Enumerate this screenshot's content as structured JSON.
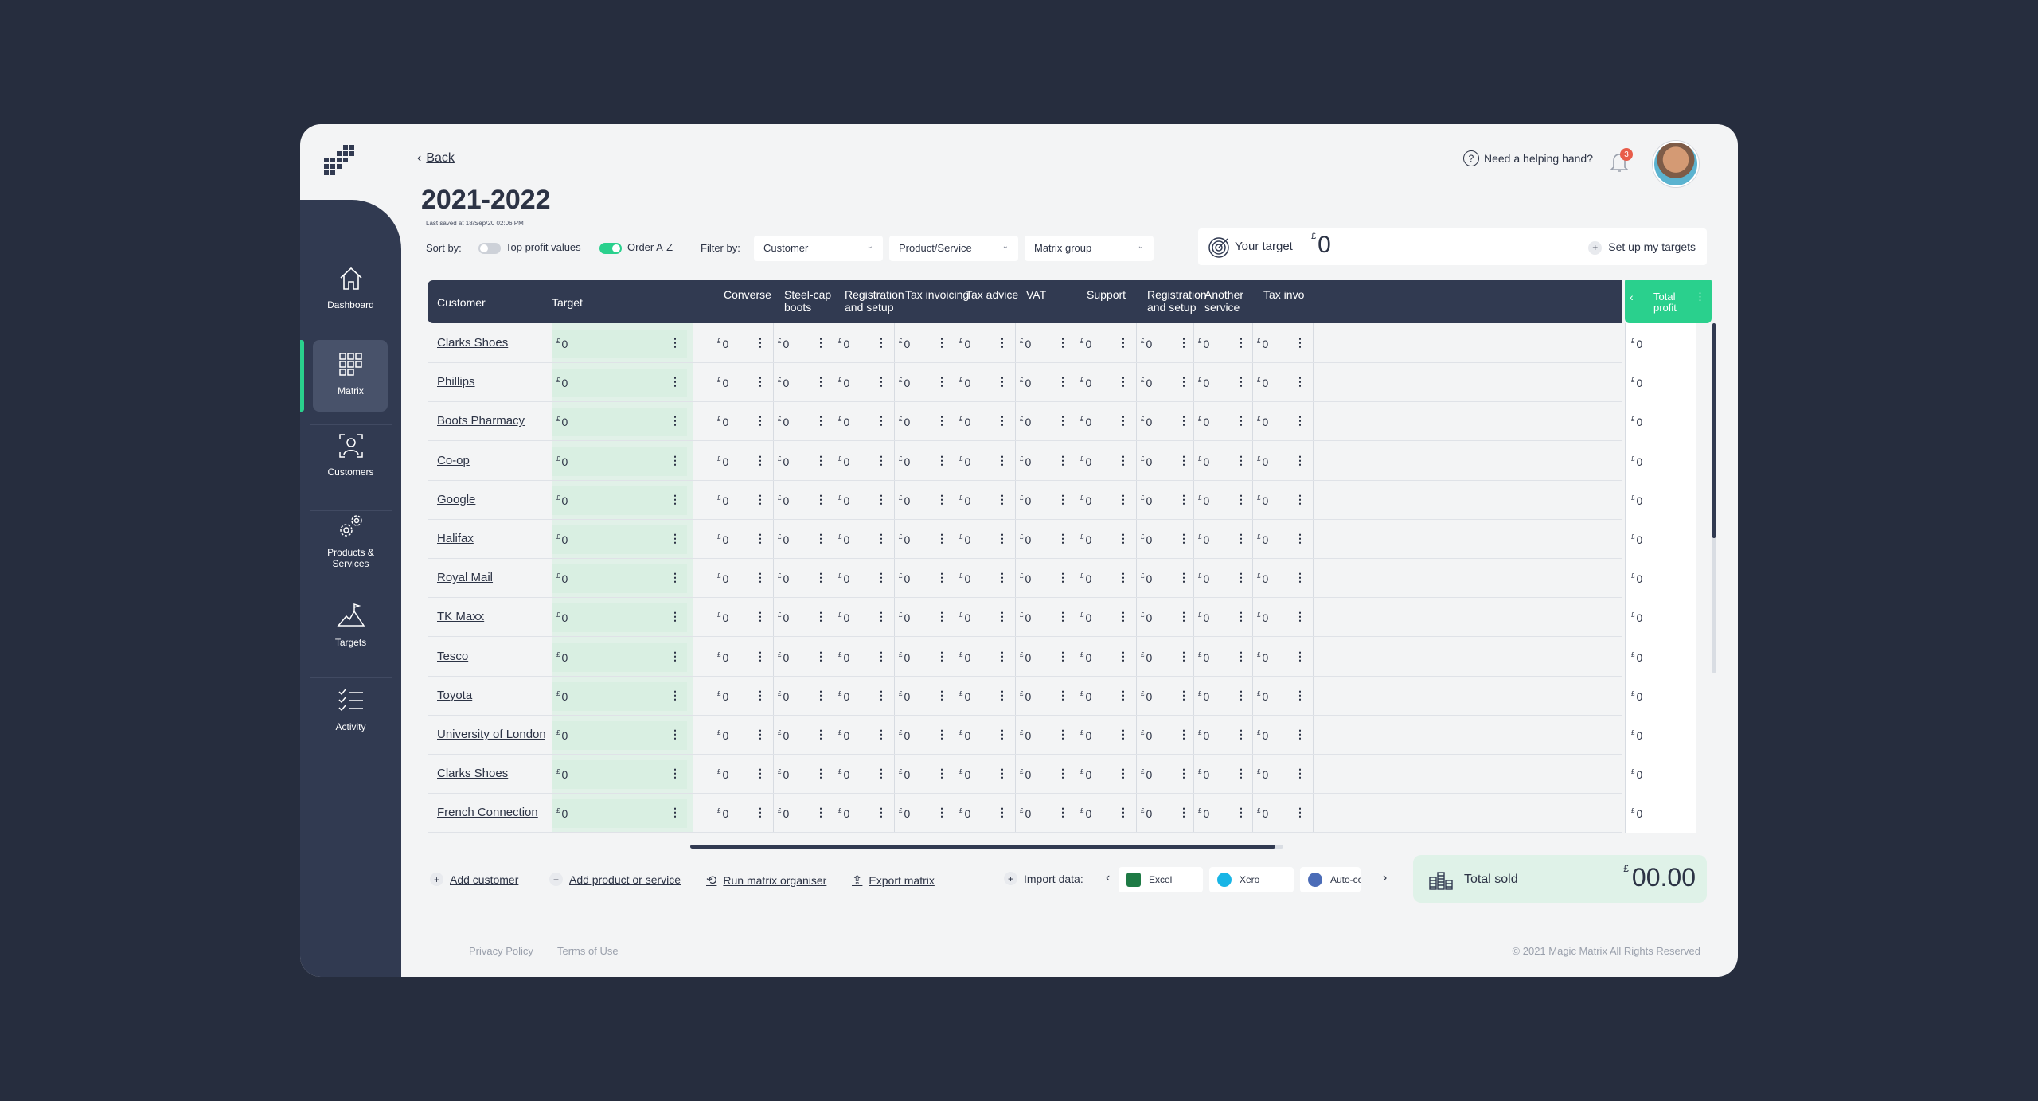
{
  "nav": {
    "items": [
      {
        "label": "Dashboard",
        "icon": "home-icon"
      },
      {
        "label": "Matrix",
        "icon": "grid-icon"
      },
      {
        "label": "Customers",
        "icon": "customer-icon"
      },
      {
        "label": "Products &\nServices",
        "icon": "gears-icon"
      },
      {
        "label": "Targets",
        "icon": "mountain-flag-icon"
      },
      {
        "label": "Activity",
        "icon": "checklist-icon"
      }
    ],
    "active": "Matrix",
    "accent_color": "#2ad08d"
  },
  "header": {
    "back_label": "Back",
    "title": "2021-2022",
    "last_saved": "Last saved at 18/Sep/20 02:06 PM",
    "help_label": "Need a helping hand?",
    "notification_count": "3"
  },
  "toolbar": {
    "sort_label": "Sort by:",
    "sort_top_profit": "Top profit values",
    "sort_top_profit_on": false,
    "sort_order_az": "Order A-Z",
    "sort_order_az_on": true,
    "filter_label": "Filter by:",
    "filters": [
      "Customer",
      "Product/Service",
      "Matrix group"
    ],
    "target_label": "Your target",
    "target_currency": "£",
    "target_value": "0",
    "setup_targets_label": "Set up my targets"
  },
  "table": {
    "header_customer": "Customer",
    "header_target": "Target",
    "service_columns": [
      "Converse",
      "Steel-cap\nboots",
      "Registration\nand setup",
      "Tax invoicing",
      "Tax advice",
      "VAT",
      "Support",
      "Registration\nand setup",
      "Another\nservice",
      "Tax invo"
    ],
    "total_header": "Total\nprofit",
    "currency": "£",
    "customers": [
      "Clarks Shoes",
      "Phillips",
      "Boots Pharmacy",
      "Co-op",
      "Google",
      "Halifax",
      "Royal Mail",
      "TK Maxx",
      "Tesco",
      "Toyota",
      "University of London",
      "Clarks Shoes",
      "French Connection"
    ],
    "cell_value": "0",
    "total_value": "0"
  },
  "actions": {
    "add_customer": "Add customer",
    "add_product": "Add product or service",
    "run_organiser": "Run matrix organiser",
    "export_matrix": "Export matrix",
    "import_label": "Import data:",
    "import_sources": [
      "Excel",
      "Xero",
      "Auto-co"
    ]
  },
  "total_sold": {
    "label": "Total sold",
    "currency": "£",
    "value": "00.00"
  },
  "footer": {
    "privacy": "Privacy Policy",
    "terms": "Terms of Use",
    "copyright": "© 2021 Magic Matrix All Rights Reserved"
  }
}
